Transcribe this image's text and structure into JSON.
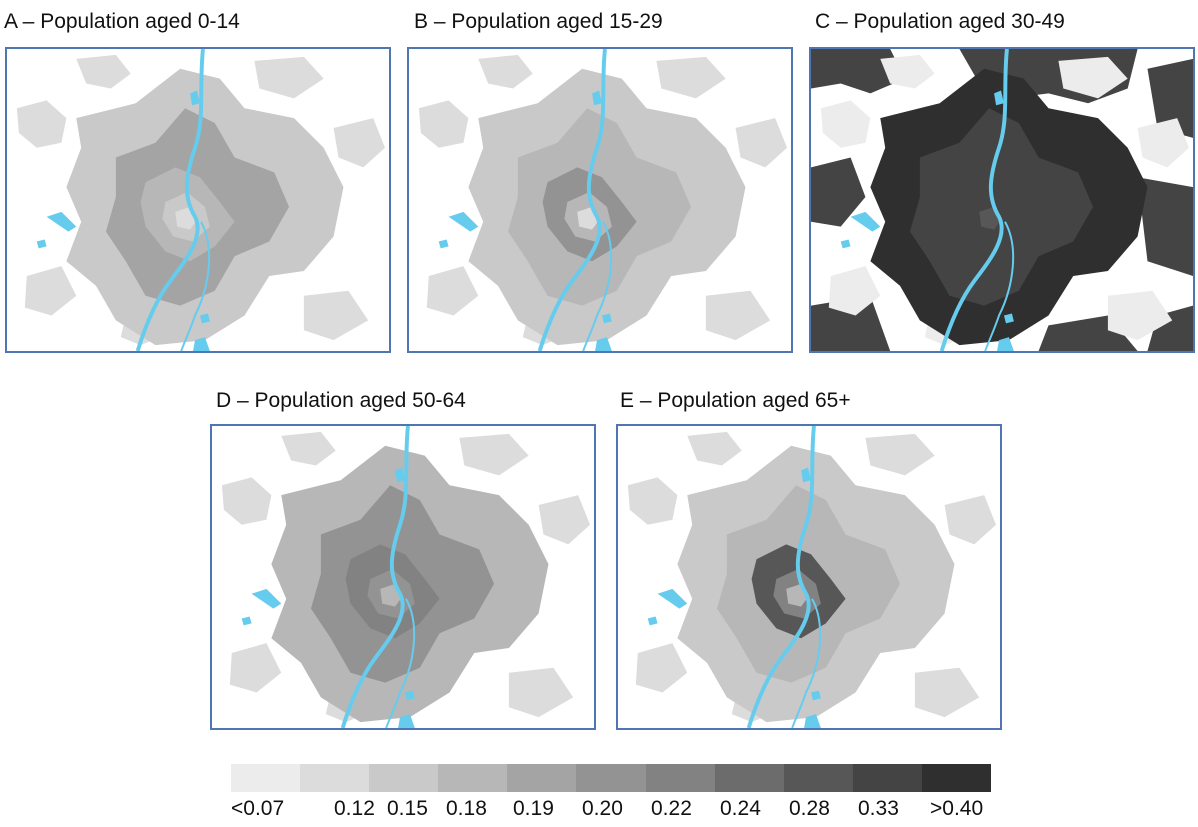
{
  "panels": [
    {
      "id": "A",
      "title": "A – Population aged 0-14",
      "levels": [
        1,
        2,
        4,
        3,
        2,
        1
      ]
    },
    {
      "id": "B",
      "title": "B – Population aged 15-29",
      "levels": [
        1,
        2,
        3,
        5,
        3,
        1
      ]
    },
    {
      "id": "C",
      "title": "C – Population aged 30-49",
      "levels": [
        0,
        10,
        9,
        9,
        9,
        8
      ]
    },
    {
      "id": "D",
      "title": "D – Population aged 50-64",
      "levels": [
        1,
        3,
        5,
        6,
        5,
        3
      ]
    },
    {
      "id": "E",
      "title": "E – Population aged 65+",
      "levels": [
        1,
        2,
        3,
        8,
        6,
        3
      ]
    }
  ],
  "legend": {
    "colors": [
      "#ececec",
      "#dcdcdc",
      "#c9c9c9",
      "#b7b7b7",
      "#a4a4a4",
      "#939393",
      "#828282",
      "#6c6c6c",
      "#575757",
      "#444444",
      "#2f2f2f"
    ],
    "labels": [
      "<0.07",
      "0.12",
      "0.15",
      "0.18",
      "0.19",
      "0.20",
      "0.22",
      "0.24",
      "0.28",
      "0.33",
      ">0.40"
    ]
  },
  "colors": {
    "water": "#66ccee",
    "frame": "#4f75b3"
  }
}
